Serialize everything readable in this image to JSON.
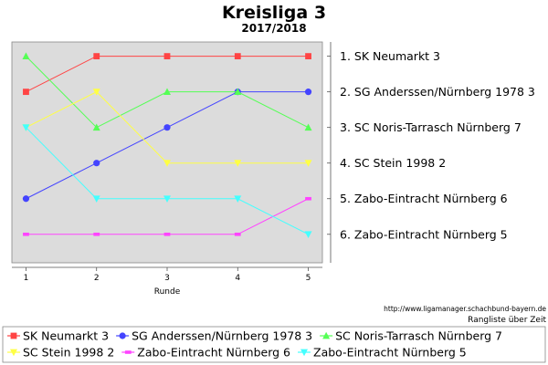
{
  "chart_data": {
    "type": "line",
    "title": "Kreisliga 3",
    "subtitle": "2017/2018",
    "xlabel": "Runde",
    "ylabel": "",
    "x": [
      1,
      2,
      3,
      4,
      5
    ],
    "xlim": [
      0.8,
      5.2
    ],
    "ylim": [
      0.6,
      6.8
    ],
    "y_inverted": true,
    "grid": false,
    "legend": "bottom",
    "rank_labels": [
      "1.  SK Neumarkt 3",
      "2.  SG Anderssen/Nürnberg 1978 3",
      "3.  SC Noris-Tarrasch Nürnberg 7",
      "4.  SC Stein 1998 2",
      "5.  Zabo-Eintracht Nürnberg 6",
      "6.  Zabo-Eintracht Nürnberg 5"
    ],
    "series": [
      {
        "name": "SK Neumarkt 3",
        "values": [
          2,
          1,
          1,
          1,
          1
        ],
        "color": "#ff4444",
        "marker": "square"
      },
      {
        "name": "SG Anderssen/Nürnberg 1978 3",
        "values": [
          5,
          4,
          3,
          2,
          2
        ],
        "color": "#4444ff",
        "marker": "circle"
      },
      {
        "name": "SC Noris-Tarrasch Nürnberg 7",
        "values": [
          1,
          3,
          2,
          2,
          3
        ],
        "color": "#55ff55",
        "marker": "triangle-up"
      },
      {
        "name": "SC Stein 1998 2",
        "values": [
          3,
          2,
          4,
          4,
          4
        ],
        "color": "#ffff44",
        "marker": "triangle-down"
      },
      {
        "name": "Zabo-Eintracht Nürnberg 6",
        "values": [
          6,
          6,
          6,
          6,
          5
        ],
        "color": "#ff44ff",
        "marker": "rect"
      },
      {
        "name": "Zabo-Eintracht Nürnberg 5",
        "values": [
          3,
          5,
          5,
          5,
          6
        ],
        "color": "#44ffff",
        "marker": "triangle-down"
      }
    ],
    "source": "http://www.ligamanager.schachbund-bayern.de",
    "caption": "Rangliste über Zeit"
  }
}
